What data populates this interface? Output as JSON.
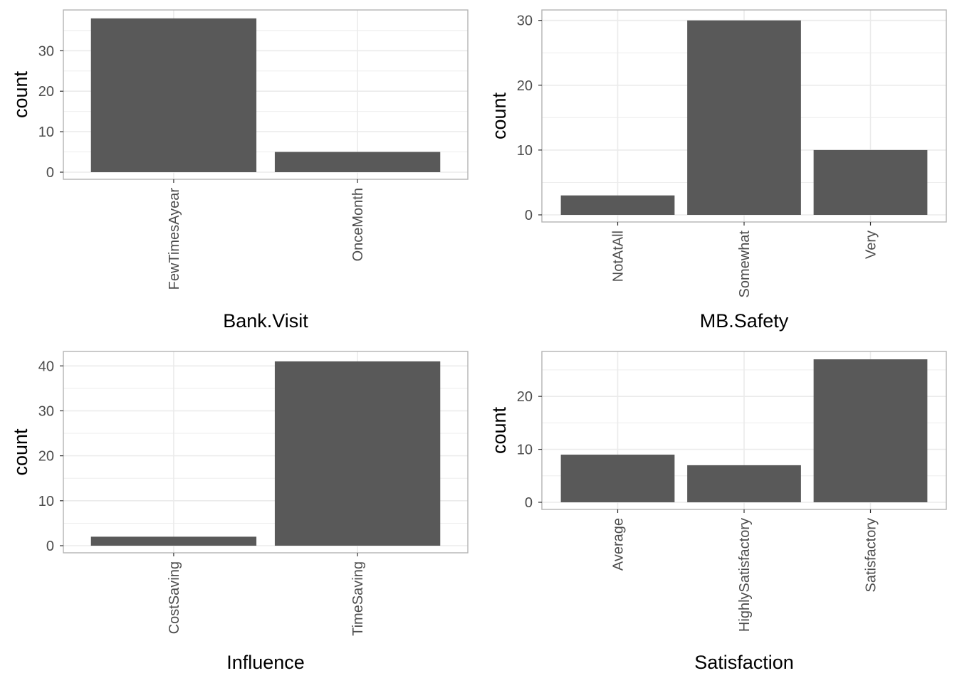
{
  "chart_data": [
    {
      "type": "bar",
      "title": "",
      "xlabel": "Bank.Visit",
      "ylabel": "count",
      "categories": [
        "FewTimesAyear",
        "OnceMonth"
      ],
      "values": [
        38,
        5
      ],
      "yticks": [
        0,
        10,
        20,
        30
      ],
      "ylim": [
        0,
        39.9
      ],
      "grid": true,
      "bar_color": "#595959",
      "grid_color": "#ebebeb",
      "panel_border_color": "#b3b3b3"
    },
    {
      "type": "bar",
      "title": "",
      "xlabel": "MB.Safety",
      "ylabel": "count",
      "categories": [
        "NotAtAll",
        "Somewhat",
        "Very"
      ],
      "values": [
        3,
        30,
        10
      ],
      "yticks": [
        0,
        10,
        20,
        30
      ],
      "ylim": [
        0,
        31.5
      ],
      "grid": true,
      "bar_color": "#595959",
      "grid_color": "#ebebeb",
      "panel_border_color": "#b3b3b3"
    },
    {
      "type": "bar",
      "title": "",
      "xlabel": "Influence",
      "ylabel": "count",
      "categories": [
        "CostSaving",
        "TimeSaving"
      ],
      "values": [
        2,
        41
      ],
      "yticks": [
        0,
        10,
        20,
        30,
        40
      ],
      "ylim": [
        0,
        43.05
      ],
      "grid": true,
      "bar_color": "#595959",
      "grid_color": "#ebebeb",
      "panel_border_color": "#b3b3b3"
    },
    {
      "type": "bar",
      "title": "",
      "xlabel": "Satisfaction",
      "ylabel": "count",
      "categories": [
        "Average",
        "HighlySatisfactory",
        "Satisfactory"
      ],
      "values": [
        9,
        7,
        27
      ],
      "yticks": [
        0,
        10,
        20
      ],
      "ylim": [
        0,
        28.35
      ],
      "grid": true,
      "bar_color": "#595959",
      "grid_color": "#ebebeb",
      "panel_border_color": "#b3b3b3"
    }
  ]
}
